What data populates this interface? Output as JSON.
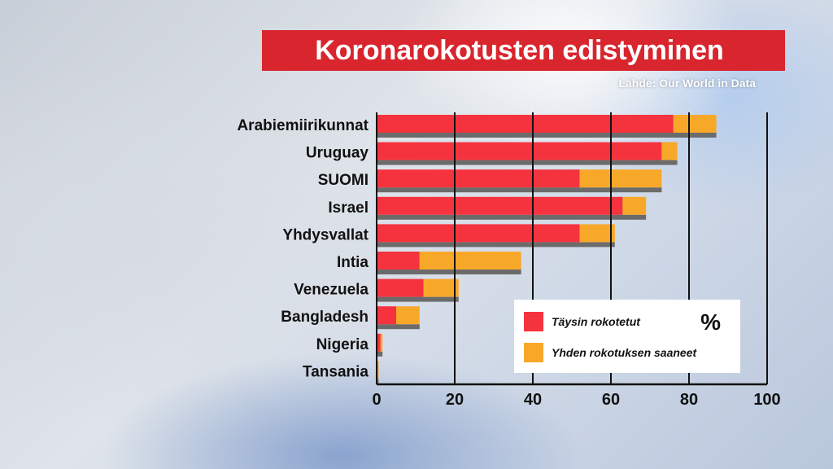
{
  "header": {
    "title": "Koronarokotusten edistyminen",
    "source": "Lähde: Our World in Data"
  },
  "colors": {
    "fully": "#f5333f",
    "one_dose": "#f8a829",
    "shadow": "#6b6b6b",
    "title_bg": "#d9252d"
  },
  "legend": {
    "fully_label": "Täysin rokotetut",
    "one_dose_label": "Yhden rokotuksen saaneet",
    "unit": "%"
  },
  "chart_data": {
    "type": "bar",
    "orientation": "horizontal",
    "stacked": true,
    "title": "Koronarokotusten edistyminen",
    "categories": [
      "Arabiemiirikunnat",
      "Uruguay",
      "SUOMI",
      "Israel",
      "Yhdysvallat",
      "Intia",
      "Venezuela",
      "Bangladesh",
      "Nigeria",
      "Tansania"
    ],
    "highlight": "SUOMI",
    "series": [
      {
        "name": "Täysin rokotetut",
        "values": [
          76,
          73,
          52,
          63,
          52,
          11,
          12,
          5,
          1,
          0.3
        ]
      },
      {
        "name": "Yhden rokotuksen saaneet",
        "values": [
          11,
          4,
          21,
          6,
          9,
          26,
          9,
          6,
          0.5,
          0.2
        ]
      }
    ],
    "xlim": [
      0,
      100
    ],
    "xticks": [
      0,
      20,
      40,
      60,
      80,
      100
    ],
    "xlabel": "%",
    "ylabel": "",
    "legend_position": "bottom-right",
    "grid": true
  }
}
